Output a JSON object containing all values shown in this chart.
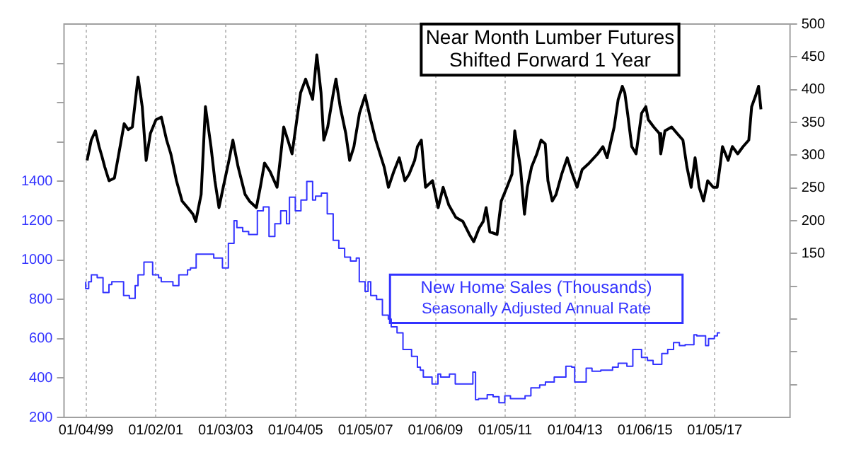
{
  "chart_data": {
    "type": "line",
    "xlim": [
      "1998-05-19",
      "2019-03-03"
    ],
    "xticks": [
      {
        "value": "1999-01-04",
        "label": "01/04/99"
      },
      {
        "value": "2001-01-02",
        "label": "01/02/01"
      },
      {
        "value": "2003-01-03",
        "label": "01/03/03"
      },
      {
        "value": "2005-01-04",
        "label": "01/04/05"
      },
      {
        "value": "2007-01-05",
        "label": "01/05/07"
      },
      {
        "value": "2009-01-06",
        "label": "01/06/09"
      },
      {
        "value": "2011-01-05",
        "label": "01/05/11"
      },
      {
        "value": "2013-01-04",
        "label": "01/04/13"
      },
      {
        "value": "2015-01-06",
        "label": "01/06/15"
      },
      {
        "value": "2017-01-05",
        "label": "01/05/17"
      }
    ],
    "ylim": [
      200,
      2200
    ],
    "yticks": [
      200,
      400,
      600,
      800,
      1000,
      1200,
      1400,
      {
        "value": 1600,
        "label": null
      },
      {
        "value": 1800,
        "label": null
      },
      {
        "value": 2000,
        "label": null
      }
    ],
    "y2lim": [
      -100,
      500
    ],
    "y2ticks": [
      {
        "value": -50,
        "label": null
      },
      {
        "value": 0,
        "label": null
      },
      {
        "value": 50,
        "label": null
      },
      {
        "value": 100,
        "label": null
      },
      150,
      200,
      250,
      300,
      350,
      400,
      450,
      500
    ],
    "grid": "x",
    "legend": false,
    "annotations": [
      "Shifted Forward 1 Year",
      "Seasonally Adjusted Annual Rate"
    ],
    "series": [
      {
        "name": "Near Month Lumber Futures",
        "axis": "y2",
        "color": "#000000",
        "x": [
          "1999-01-15",
          "1999-02-28",
          "1999-04-12",
          "1999-05-21",
          "1999-06-20",
          "1999-07-19",
          "1999-09-02",
          "1999-10-28",
          "1999-12-13",
          "2000-02-07",
          "2000-03-20",
          "2000-05-03",
          "2000-07-01",
          "2000-08-14",
          "2000-09-24",
          "2000-11-07",
          "2001-01-05",
          "2001-03-02",
          "2001-04-26",
          "2001-06-09",
          "2001-08-07",
          "2001-10-05",
          "2001-12-02",
          "2002-01-26",
          "2002-02-25",
          "2002-04-22",
          "2002-06-06",
          "2002-08-03",
          "2002-09-13",
          "2002-10-26",
          "2002-12-09",
          "2003-02-07",
          "2003-03-20",
          "2003-05-14",
          "2003-07-26",
          "2003-09-09",
          "2003-11-21",
          "2004-01-01",
          "2004-02-14",
          "2004-04-12",
          "2004-06-24",
          "2004-08-03",
          "2004-09-02",
          "2004-10-15",
          "2004-11-28",
          "2005-02-25",
          "2005-04-19",
          "2005-07-01",
          "2005-08-14",
          "2005-09-27",
          "2005-10-26",
          "2005-12-06",
          "2006-02-03",
          "2006-03-02",
          "2006-04-15",
          "2006-06-13",
          "2006-07-23",
          "2006-09-06",
          "2006-11-03",
          "2007-01-01",
          "2007-02-28",
          "2007-04-22",
          "2007-06-06",
          "2007-07-19",
          "2007-09-02",
          "2007-10-28",
          "2007-12-24",
          "2008-02-21",
          "2008-04-05",
          "2008-06-02",
          "2008-07-01",
          "2008-08-11",
          "2008-09-24",
          "2008-12-06",
          "2009-02-03",
          "2009-03-27",
          "2009-05-25",
          "2009-08-07",
          "2009-10-19",
          "2009-12-27",
          "2010-02-10",
          "2010-04-08",
          "2010-05-21",
          "2010-06-20",
          "2010-07-28",
          "2010-10-12",
          "2010-11-25",
          "2011-01-23",
          "2011-03-17",
          "2011-04-15",
          "2011-06-13",
          "2011-07-26",
          "2011-08-25",
          "2011-10-08",
          "2011-12-02",
          "2012-01-15",
          "2012-02-28",
          "2012-03-27",
          "2012-05-11",
          "2012-06-20",
          "2012-08-18",
          "2012-10-15",
          "2012-11-28",
          "2013-01-26",
          "2013-03-20",
          "2013-06-02",
          "2013-08-29",
          "2013-10-23",
          "2013-12-06",
          "2014-02-18",
          "2014-04-01",
          "2014-05-14",
          "2014-06-09",
          "2014-07-08",
          "2014-08-21",
          "2014-10-05",
          "2014-12-02",
          "2015-01-15",
          "2015-02-10",
          "2015-04-08",
          "2015-06-06",
          "2015-06-20",
          "2015-08-03",
          "2015-10-12",
          "2015-12-09",
          "2016-02-07",
          "2016-03-20",
          "2016-05-03",
          "2016-06-13",
          "2016-07-26",
          "2016-09-09",
          "2016-10-23",
          "2016-12-20",
          "2017-01-30",
          "2017-02-28",
          "2017-03-27",
          "2017-05-25",
          "2017-07-08",
          "2017-09-02",
          "2017-10-28",
          "2017-12-27",
          "2018-01-26",
          "2018-03-09",
          "2018-04-08",
          "2018-05-03"
        ],
        "values": [
          292,
          323,
          337,
          313,
          298,
          282,
          261,
          265,
          302,
          348,
          339,
          343,
          419,
          374,
          292,
          333,
          354,
          358,
          323,
          302,
          261,
          230,
          220,
          210,
          199,
          240,
          374,
          313,
          261,
          220,
          251,
          292,
          323,
          282,
          240,
          230,
          220,
          251,
          288,
          275,
          251,
          302,
          343,
          323,
          302,
          395,
          416,
          385,
          453,
          395,
          323,
          343,
          395,
          416,
          374,
          333,
          292,
          313,
          364,
          391,
          354,
          323,
          302,
          282,
          251,
          275,
          296,
          261,
          271,
          292,
          313,
          323,
          251,
          261,
          220,
          251,
          224,
          205,
          199,
          179,
          168,
          189,
          199,
          220,
          183,
          179,
          230,
          251,
          271,
          337,
          282,
          210,
          251,
          282,
          302,
          323,
          317,
          261,
          230,
          240,
          271,
          296,
          275,
          251,
          278,
          288,
          302,
          313,
          296,
          343,
          385,
          405,
          395,
          364,
          313,
          302,
          364,
          374,
          354,
          343,
          333,
          302,
          337,
          343,
          333,
          323,
          282,
          251,
          296,
          251,
          230,
          261,
          251,
          251,
          282,
          313,
          292,
          313,
          302,
          313,
          323,
          374,
          391,
          405,
          370
        ]
      },
      {
        "name": "New Home Sales (Thousands)",
        "type": "step",
        "color": "#3333ff",
        "x": [
          "1999-01",
          "1999-02",
          "1999-03",
          "1999-05",
          "1999-07",
          "1999-09",
          "1999-10",
          "2000-02",
          "2000-04",
          "2000-06",
          "2000-07",
          "2000-09",
          "2000-12",
          "2001-02",
          "2001-03",
          "2001-07",
          "2001-09",
          "2001-12",
          "2002-01",
          "2002-03",
          "2002-07",
          "2002-09",
          "2002-12",
          "2003-02",
          "2003-04",
          "2003-05",
          "2003-07",
          "2003-09",
          "2003-12",
          "2004-02",
          "2004-04",
          "2004-06",
          "2004-08",
          "2004-10",
          "2004-11",
          "2005-01",
          "2005-03",
          "2005-05",
          "2005-07",
          "2005-08",
          "2005-10",
          "2005-12",
          "2006-02",
          "2006-04",
          "2006-06",
          "2006-08",
          "2006-10",
          "2006-11",
          "2007-01",
          "2007-02",
          "2007-03",
          "2007-05",
          "2007-07",
          "2007-09",
          "2007-10",
          "2007-12",
          "2008-02",
          "2008-05",
          "2008-07",
          "2008-08",
          "2008-09",
          "2008-12",
          "2009-02",
          "2009-03",
          "2009-06",
          "2009-08",
          "2009-11",
          "2010-02",
          "2010-03",
          "2010-04",
          "2010-07",
          "2010-09",
          "2010-11",
          "2011-01",
          "2011-03",
          "2011-05",
          "2011-08",
          "2011-10",
          "2012-01",
          "2012-03",
          "2012-06",
          "2012-10",
          "2012-12",
          "2013-01",
          "2013-05",
          "2013-07",
          "2013-10",
          "2014-02",
          "2014-04",
          "2014-07",
          "2014-09",
          "2014-12",
          "2015-02",
          "2015-04",
          "2015-07",
          "2015-09",
          "2015-11",
          "2016-01",
          "2016-03",
          "2016-06",
          "2016-07",
          "2016-10",
          "2016-11",
          "2017-01",
          "2017-02",
          "2017-03"
        ],
        "values": [
          890,
          855,
          890,
          925,
          910,
          835,
          875,
          890,
          820,
          805,
          870,
          925,
          990,
          925,
          910,
          890,
          870,
          925,
          950,
          960,
          1030,
          1030,
          1010,
          960,
          1085,
          1200,
          1165,
          1145,
          1130,
          1250,
          1270,
          1120,
          1185,
          1250,
          1185,
          1320,
          1250,
          1305,
          1400,
          1305,
          1325,
          1340,
          1235,
          1100,
          1060,
          1015,
          995,
          1010,
          890,
          840,
          890,
          820,
          800,
          720,
          700,
          660,
          630,
          545,
          510,
          455,
          440,
          405,
          370,
          420,
          405,
          420,
          370,
          370,
          430,
          290,
          295,
          315,
          305,
          275,
          310,
          295,
          295,
          310,
          350,
          365,
          380,
          405,
          460,
          455,
          380,
          450,
          435,
          440,
          455,
          475,
          460,
          545,
          505,
          490,
          470,
          525,
          545,
          580,
          565,
          570,
          620,
          615,
          565,
          600,
          615,
          630
        ]
      }
    ]
  }
}
